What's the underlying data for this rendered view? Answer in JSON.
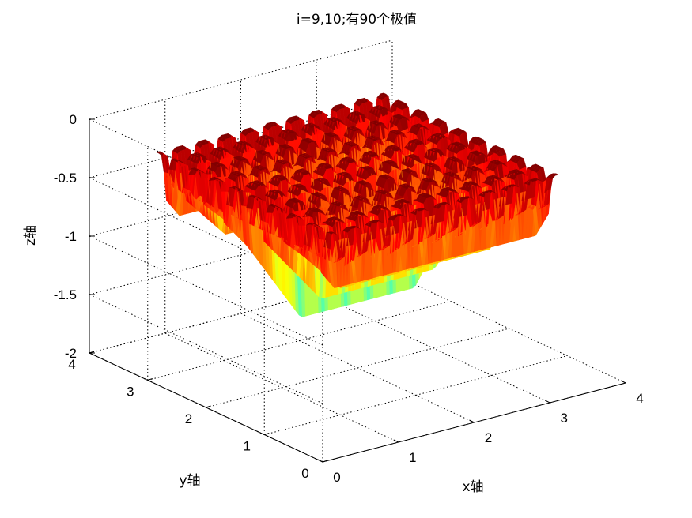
{
  "chart_data": {
    "type": "surface",
    "title": "i=9,10;有90个极值",
    "xlabel": "x轴",
    "ylabel": "y轴",
    "zlabel": "z轴",
    "xlim": [
      0,
      4
    ],
    "ylim": [
      0,
      4
    ],
    "zlim": [
      -2,
      0
    ],
    "xticks": [
      0,
      1,
      2,
      3,
      4
    ],
    "yticks": [
      0,
      1,
      2,
      3,
      4
    ],
    "zticks": [
      0,
      -0.5,
      -1,
      -1.5,
      -2
    ],
    "xtick_labels": [
      "0",
      "1",
      "2",
      "3",
      "4"
    ],
    "ytick_labels": [
      "0",
      "1",
      "2",
      "3",
      "4"
    ],
    "ztick_labels": [
      "0",
      "-0.5",
      "-1",
      "-1.5",
      "-2"
    ],
    "grid": true,
    "colormap": "jet",
    "surface": {
      "plateau_z": -0.25,
      "trough_min_z": -1.95,
      "extrema_count": 90,
      "x_data_range": [
        0.5,
        3.5
      ],
      "y_data_range": [
        0.5,
        3.5
      ]
    }
  }
}
